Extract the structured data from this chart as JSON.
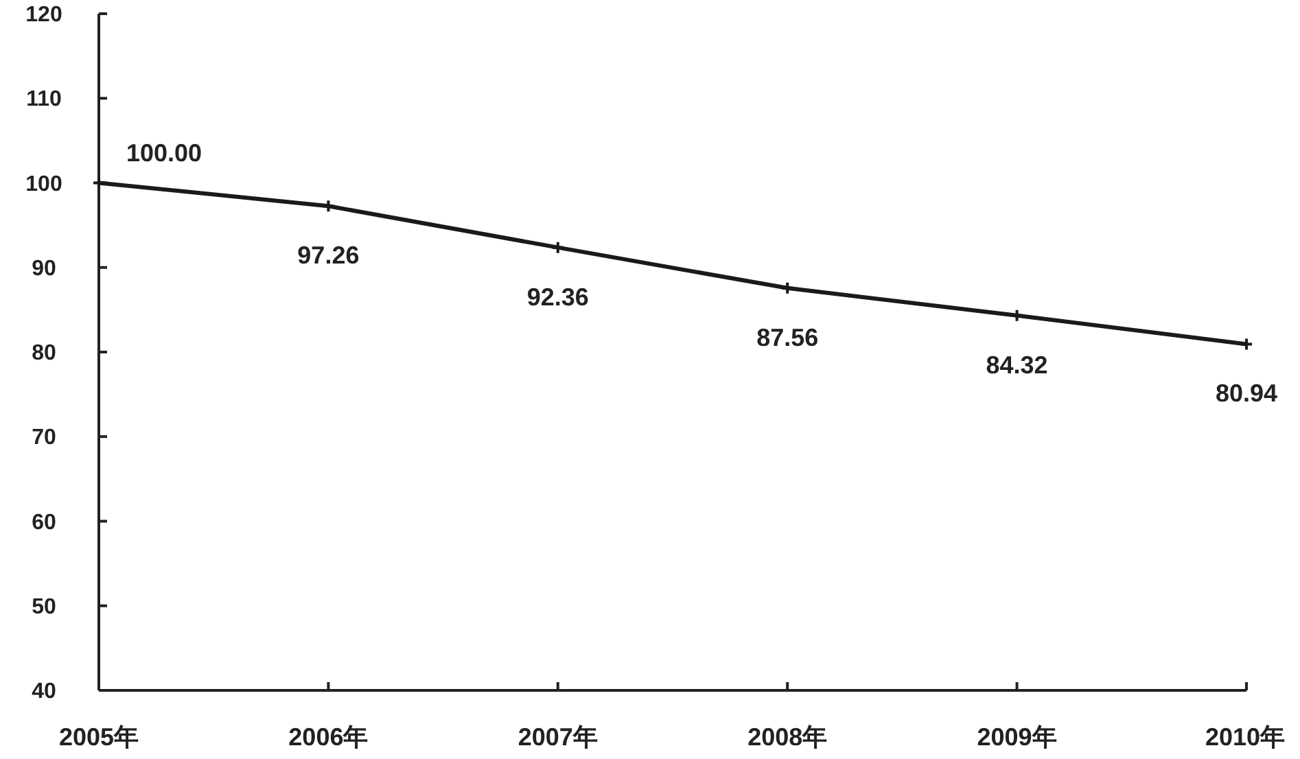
{
  "chart_data": {
    "type": "line",
    "categories": [
      "2005年",
      "2006年",
      "2007年",
      "2008年",
      "2009年",
      "2010年"
    ],
    "series": [
      {
        "color": "#1a1a1a",
        "values": [
          100.0,
          97.26,
          92.36,
          87.56,
          84.32,
          80.94
        ],
        "value_labels": [
          "100.00",
          "97.26",
          "92.36",
          "87.56",
          "84.32",
          "80.94"
        ]
      }
    ],
    "ylim": [
      40,
      120
    ],
    "yticks": [
      40,
      50,
      60,
      70,
      80,
      90,
      100,
      110,
      120
    ],
    "marker": "cross",
    "grid": false
  }
}
